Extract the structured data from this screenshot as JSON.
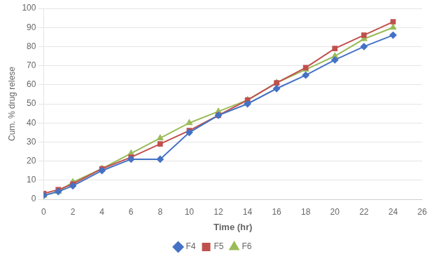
{
  "chart_data": {
    "type": "line",
    "x": [
      0,
      1,
      2,
      4,
      6,
      8,
      10,
      12,
      14,
      16,
      18,
      20,
      22,
      24
    ],
    "series": [
      {
        "name": "F4",
        "color": "#4472C4",
        "marker": "diamond",
        "values": [
          2,
          4,
          7,
          15,
          21,
          21,
          35,
          44,
          50,
          58,
          65,
          73,
          80,
          86
        ]
      },
      {
        "name": "F5",
        "color": "#C0504D",
        "marker": "square",
        "values": [
          3,
          5,
          8,
          16,
          22,
          29,
          36,
          44,
          52,
          61,
          69,
          79,
          86,
          93
        ]
      },
      {
        "name": "F6",
        "color": "#9BBB59",
        "marker": "triangle",
        "values": [
          2,
          4,
          9,
          16,
          24,
          32,
          40,
          46,
          52,
          61,
          68,
          75,
          84,
          90
        ]
      }
    ],
    "xlabel": "Time (hr)",
    "ylabel": "Cum. % drug relese",
    "xlim": [
      0,
      26
    ],
    "ylim": [
      0,
      100
    ],
    "xticks": [
      0,
      2,
      4,
      6,
      8,
      10,
      12,
      14,
      16,
      18,
      20,
      22,
      24,
      26
    ],
    "yticks": [
      0,
      10,
      20,
      30,
      40,
      50,
      60,
      70,
      80,
      90,
      100
    ],
    "grid": "y",
    "legend": "bottom"
  }
}
